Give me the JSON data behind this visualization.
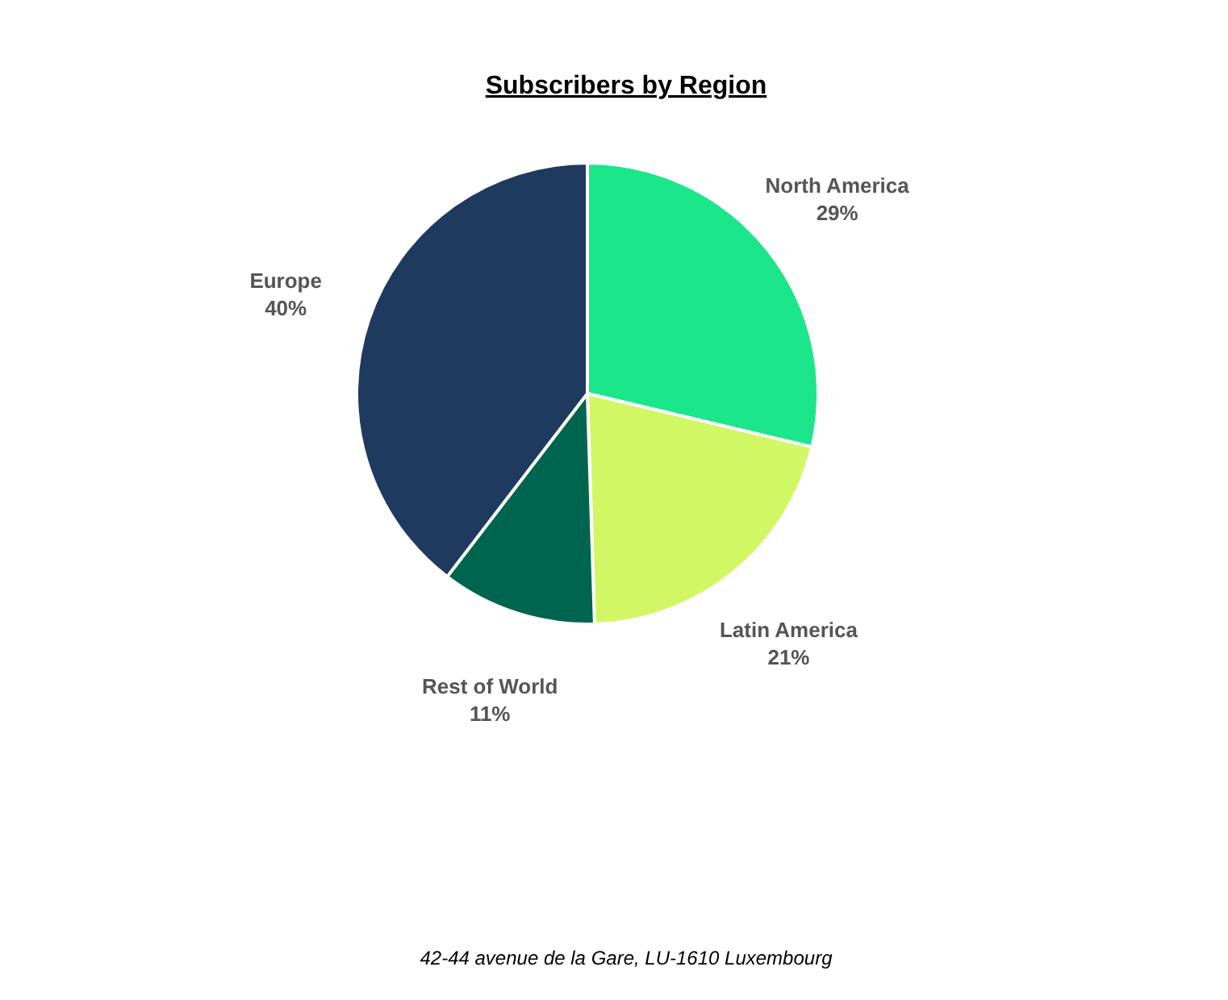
{
  "chart_data": {
    "type": "pie",
    "title": "Subscribers by Region",
    "categories": [
      "North America",
      "Latin America",
      "Rest of World",
      "Europe"
    ],
    "values": [
      29,
      21,
      11,
      40
    ],
    "value_labels": [
      "29%",
      "21%",
      "11%",
      "40%"
    ],
    "colors": [
      "#1ce68a",
      "#d2f764",
      "#00654f",
      "#1f3a5f"
    ],
    "legend": false,
    "annotations": [
      "42-44 avenue de la Gare, LU-1610 Luxembourg"
    ]
  }
}
